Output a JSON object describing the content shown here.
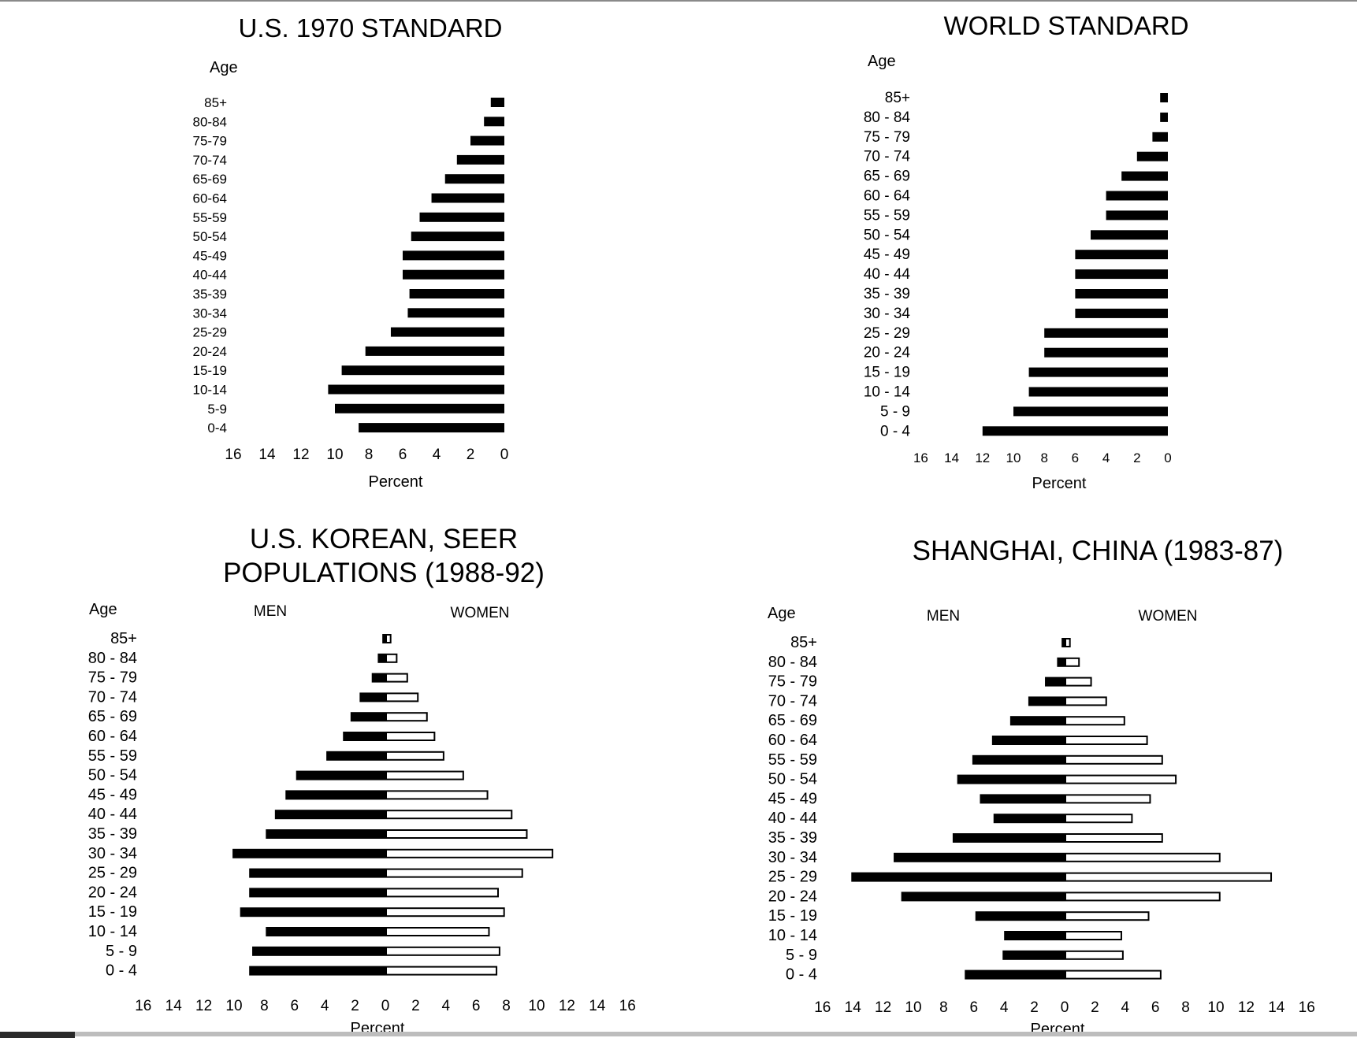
{
  "chart_data": [
    {
      "id": "us1970",
      "type": "bar",
      "title": "U.S. 1970 STANDARD",
      "ylabel": "Age",
      "xlabel": "Percent",
      "orientation": "horizontal",
      "direction": "left",
      "xlim": [
        0,
        16
      ],
      "xticks": [
        16,
        14,
        12,
        10,
        8,
        6,
        4,
        2,
        0
      ],
      "categories": [
        "85+",
        "80-84",
        "75-79",
        "70-74",
        "65-69",
        "60-64",
        "55-59",
        "50-54",
        "45-49",
        "40-44",
        "35-39",
        "30-34",
        "25-29",
        "20-24",
        "15-19",
        "10-14",
        "5-9",
        "0-4"
      ],
      "series": [
        {
          "values": [
            0.8,
            1.2,
            2.0,
            2.8,
            3.5,
            4.3,
            5.0,
            5.5,
            6.0,
            6.0,
            5.6,
            5.7,
            6.7,
            8.2,
            9.6,
            10.4,
            10.0,
            8.6
          ],
          "color": "#000000"
        }
      ]
    },
    {
      "id": "world",
      "type": "bar",
      "title": "WORLD STANDARD",
      "ylabel": "Age",
      "xlabel": "Percent",
      "orientation": "horizontal",
      "direction": "left",
      "xlim": [
        0,
        16
      ],
      "xticks": [
        16,
        14,
        12,
        10,
        8,
        6,
        4,
        2,
        0
      ],
      "categories": [
        "85+",
        "80 - 84",
        "75 - 79",
        "70 - 74",
        "65 - 69",
        "60 - 64",
        "55 - 59",
        "50 - 54",
        "45 - 49",
        "40 - 44",
        "35 - 39",
        "30 - 34",
        "25 - 29",
        "20 - 24",
        "15 - 19",
        "10 - 14",
        "5 - 9",
        "0 - 4"
      ],
      "series": [
        {
          "values": [
            0.5,
            0.5,
            1.0,
            2.0,
            3.0,
            4.0,
            4.0,
            5.0,
            6.0,
            6.0,
            6.0,
            6.0,
            8.0,
            8.0,
            9.0,
            9.0,
            10.0,
            12.0
          ],
          "color": "#000000"
        }
      ]
    },
    {
      "id": "korean",
      "type": "bar",
      "title": "U.S. KOREAN, SEER",
      "subtitle": "POPULATIONS (1988-92)",
      "ylabel": "Age",
      "xlabel": "Percent",
      "orientation": "horizontal",
      "direction": "both",
      "xlim": [
        -16,
        16
      ],
      "xticks": [
        16,
        14,
        12,
        10,
        8,
        6,
        4,
        2,
        0,
        2,
        4,
        6,
        8,
        10,
        12,
        14,
        16
      ],
      "categories": [
        "85+",
        "80 - 84",
        "75 - 79",
        "70 - 74",
        "65 - 69",
        "60 - 64",
        "55 - 59",
        "50 - 54",
        "45 - 49",
        "40 - 44",
        "35 - 39",
        "30 - 34",
        "25 - 29",
        "20 - 24",
        "15 - 19",
        "10 - 14",
        "5 - 9",
        "0 - 4"
      ],
      "series": [
        {
          "name": "MEN",
          "values": [
            0.2,
            0.5,
            0.9,
            1.7,
            2.3,
            2.8,
            3.9,
            5.9,
            6.6,
            7.3,
            7.9,
            10.1,
            9.0,
            9.0,
            9.6,
            7.9,
            8.8,
            9.0
          ],
          "color": "#000000"
        },
        {
          "name": "WOMEN",
          "values": [
            0.4,
            0.8,
            1.5,
            2.2,
            2.8,
            3.3,
            3.9,
            5.2,
            6.8,
            8.4,
            9.4,
            11.1,
            9.1,
            7.5,
            7.9,
            6.9,
            7.6,
            7.4
          ],
          "color": "#ffffff"
        }
      ]
    },
    {
      "id": "shanghai",
      "type": "bar",
      "title": "SHANGHAI, CHINA (1983-87)",
      "ylabel": "Age",
      "xlabel": "Percent",
      "orientation": "horizontal",
      "direction": "both",
      "xlim": [
        -16,
        16
      ],
      "xticks": [
        16,
        14,
        12,
        10,
        8,
        6,
        4,
        2,
        0,
        2,
        4,
        6,
        8,
        10,
        12,
        14,
        16
      ],
      "categories": [
        "85+",
        "80 - 84",
        "75 - 79",
        "70 - 74",
        "65 - 69",
        "60 - 64",
        "55 - 59",
        "50 - 54",
        "45 - 49",
        "40 - 44",
        "35 - 39",
        "30 - 34",
        "25 - 29",
        "20 - 24",
        "15 - 19",
        "10 - 14",
        "5 - 9",
        "0 - 4"
      ],
      "series": [
        {
          "name": "MEN",
          "values": [
            0.2,
            0.5,
            1.3,
            2.4,
            3.6,
            4.8,
            6.1,
            7.1,
            5.6,
            4.7,
            7.4,
            11.3,
            14.1,
            10.8,
            5.9,
            4.0,
            4.1,
            6.6
          ],
          "color": "#000000"
        },
        {
          "name": "WOMEN",
          "values": [
            0.4,
            1.0,
            1.8,
            2.8,
            4.0,
            5.5,
            6.5,
            7.4,
            5.7,
            4.5,
            6.5,
            10.3,
            13.7,
            10.3,
            5.6,
            3.8,
            3.9,
            6.4
          ],
          "color": "#ffffff"
        }
      ]
    }
  ]
}
